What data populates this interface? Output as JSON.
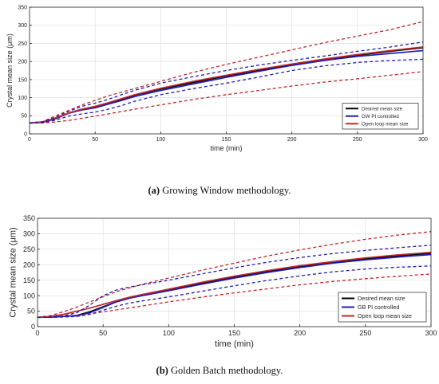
{
  "chart_data": [
    {
      "type": "line",
      "caption_tag": "(a)",
      "caption_text": "Growing Window methodology.",
      "xlabel": "time (min)",
      "ylabel": "Crystal mean size (μm)",
      "xlim": [
        0,
        300
      ],
      "ylim": [
        0,
        350
      ],
      "xticks": [
        0,
        50,
        100,
        150,
        200,
        250,
        300
      ],
      "yticks": [
        0,
        50,
        100,
        150,
        200,
        250,
        300,
        350
      ],
      "grid": true,
      "legend_position": "bottom-right",
      "series": [
        {
          "name": "Desired mean size",
          "color": "#000000",
          "style": "solid",
          "x": [
            0,
            10,
            20,
            30,
            40,
            50,
            60,
            70,
            80,
            100,
            125,
            150,
            175,
            200,
            225,
            250,
            275,
            300
          ],
          "y": [
            30,
            32,
            42,
            58,
            68,
            75,
            85,
            95,
            107,
            124,
            142,
            160,
            176,
            192,
            205,
            217,
            228,
            238
          ]
        },
        {
          "name": "GW PI controlled",
          "color": "#1f1fb4",
          "style": "solid",
          "x": [
            0,
            10,
            20,
            30,
            40,
            50,
            60,
            70,
            80,
            100,
            125,
            150,
            175,
            200,
            225,
            250,
            275,
            300
          ],
          "y": [
            30,
            32,
            42,
            57,
            66,
            72,
            82,
            92,
            103,
            120,
            138,
            156,
            173,
            189,
            203,
            214,
            222,
            230
          ]
        },
        {
          "name": "Open loop mean size",
          "color": "#c0282d",
          "style": "solid",
          "x": [
            0,
            10,
            20,
            30,
            40,
            50,
            60,
            70,
            80,
            100,
            125,
            150,
            175,
            200,
            225,
            250,
            275,
            300
          ],
          "y": [
            30,
            33,
            44,
            58,
            68,
            76,
            86,
            97,
            108,
            126,
            145,
            162,
            178,
            193,
            207,
            219,
            230,
            240
          ]
        },
        {
          "name": "",
          "color": "#c0282d",
          "style": "dashed",
          "x": [
            0,
            10,
            20,
            30,
            40,
            60,
            80,
            100,
            125,
            150,
            175,
            200,
            225,
            250,
            275,
            300
          ],
          "y": [
            30,
            34,
            50,
            65,
            80,
            105,
            125,
            145,
            170,
            192,
            212,
            232,
            252,
            270,
            288,
            310
          ]
        },
        {
          "name": "",
          "color": "#c0282d",
          "style": "dashed",
          "x": [
            0,
            10,
            20,
            30,
            40,
            60,
            80,
            100,
            125,
            150,
            175,
            200,
            225,
            250,
            275,
            300
          ],
          "y": [
            30,
            30,
            33,
            37,
            43,
            55,
            68,
            80,
            95,
            108,
            120,
            132,
            143,
            152,
            162,
            172
          ]
        },
        {
          "name": "",
          "color": "#1f1fb4",
          "style": "dashed",
          "x": [
            0,
            10,
            20,
            30,
            40,
            50,
            60,
            70,
            80,
            100,
            125,
            150,
            175,
            200,
            225,
            250,
            275,
            300
          ],
          "y": [
            30,
            33,
            46,
            63,
            76,
            85,
            95,
            108,
            120,
            140,
            158,
            175,
            190,
            203,
            215,
            228,
            240,
            254
          ]
        },
        {
          "name": "",
          "color": "#1f1fb4",
          "style": "dashed",
          "x": [
            0,
            10,
            20,
            30,
            40,
            50,
            60,
            70,
            80,
            100,
            125,
            150,
            175,
            200,
            225,
            250,
            275,
            300
          ],
          "y": [
            30,
            31,
            38,
            49,
            55,
            60,
            68,
            78,
            90,
            108,
            125,
            140,
            157,
            175,
            188,
            197,
            203,
            206
          ]
        }
      ]
    },
    {
      "type": "line",
      "caption_tag": "(b)",
      "caption_text": "Golden Batch methodology.",
      "xlabel": "time (min)",
      "ylabel": "Crystal mean size (μm)",
      "xlim": [
        0,
        300
      ],
      "ylim": [
        0,
        350
      ],
      "xticks": [
        0,
        50,
        100,
        150,
        200,
        250,
        300
      ],
      "yticks": [
        0,
        50,
        100,
        150,
        200,
        250,
        300,
        350
      ],
      "grid": true,
      "legend_position": "bottom-right",
      "series": [
        {
          "name": "Desired mean size",
          "color": "#000000",
          "style": "solid",
          "x": [
            0,
            10,
            20,
            30,
            40,
            50,
            60,
            70,
            80,
            100,
            125,
            150,
            175,
            200,
            225,
            250,
            275,
            300
          ],
          "y": [
            30,
            31,
            33,
            36,
            48,
            64,
            80,
            92,
            101,
            118,
            140,
            160,
            178,
            194,
            207,
            219,
            229,
            237
          ]
        },
        {
          "name": "GB PI controlled",
          "color": "#1f1fb4",
          "style": "solid",
          "x": [
            0,
            10,
            20,
            30,
            40,
            50,
            60,
            70,
            80,
            100,
            125,
            150,
            175,
            200,
            225,
            250,
            275,
            300
          ],
          "y": [
            30,
            31,
            33,
            35,
            45,
            62,
            80,
            92,
            100,
            116,
            137,
            157,
            175,
            191,
            205,
            216,
            225,
            233
          ]
        },
        {
          "name": "Open loop mean size",
          "color": "#c0282d",
          "style": "solid",
          "x": [
            0,
            10,
            20,
            30,
            40,
            50,
            60,
            70,
            80,
            100,
            125,
            150,
            175,
            200,
            225,
            250,
            275,
            300
          ],
          "y": [
            30,
            33,
            40,
            50,
            60,
            72,
            84,
            95,
            104,
            121,
            143,
            163,
            181,
            197,
            210,
            222,
            232,
            240
          ]
        },
        {
          "name": "",
          "color": "#c0282d",
          "style": "dashed",
          "x": [
            0,
            10,
            20,
            30,
            40,
            60,
            80,
            100,
            125,
            150,
            175,
            200,
            225,
            250,
            275,
            300
          ],
          "y": [
            30,
            36,
            48,
            63,
            80,
            113,
            137,
            157,
            182,
            205,
            228,
            248,
            266,
            282,
            296,
            307
          ]
        },
        {
          "name": "",
          "color": "#c0282d",
          "style": "dashed",
          "x": [
            0,
            10,
            20,
            30,
            40,
            60,
            80,
            100,
            125,
            150,
            175,
            200,
            225,
            250,
            275,
            300
          ],
          "y": [
            30,
            30,
            32,
            35,
            41,
            54,
            67,
            80,
            95,
            109,
            122,
            135,
            146,
            155,
            163,
            170
          ]
        },
        {
          "name": "",
          "color": "#1f1fb4",
          "style": "dashed",
          "x": [
            0,
            10,
            20,
            30,
            40,
            50,
            60,
            70,
            80,
            100,
            125,
            150,
            175,
            200,
            225,
            250,
            275,
            300
          ],
          "y": [
            30,
            31,
            35,
            45,
            70,
            100,
            118,
            128,
            135,
            150,
            170,
            190,
            208,
            223,
            236,
            246,
            255,
            263
          ]
        },
        {
          "name": "",
          "color": "#1f1fb4",
          "style": "dashed",
          "x": [
            0,
            10,
            20,
            30,
            40,
            50,
            60,
            70,
            80,
            100,
            125,
            150,
            175,
            200,
            225,
            250,
            275,
            300
          ],
          "y": [
            30,
            30,
            31,
            33,
            40,
            53,
            66,
            76,
            83,
            96,
            114,
            132,
            149,
            164,
            177,
            186,
            192,
            196
          ]
        }
      ]
    }
  ]
}
